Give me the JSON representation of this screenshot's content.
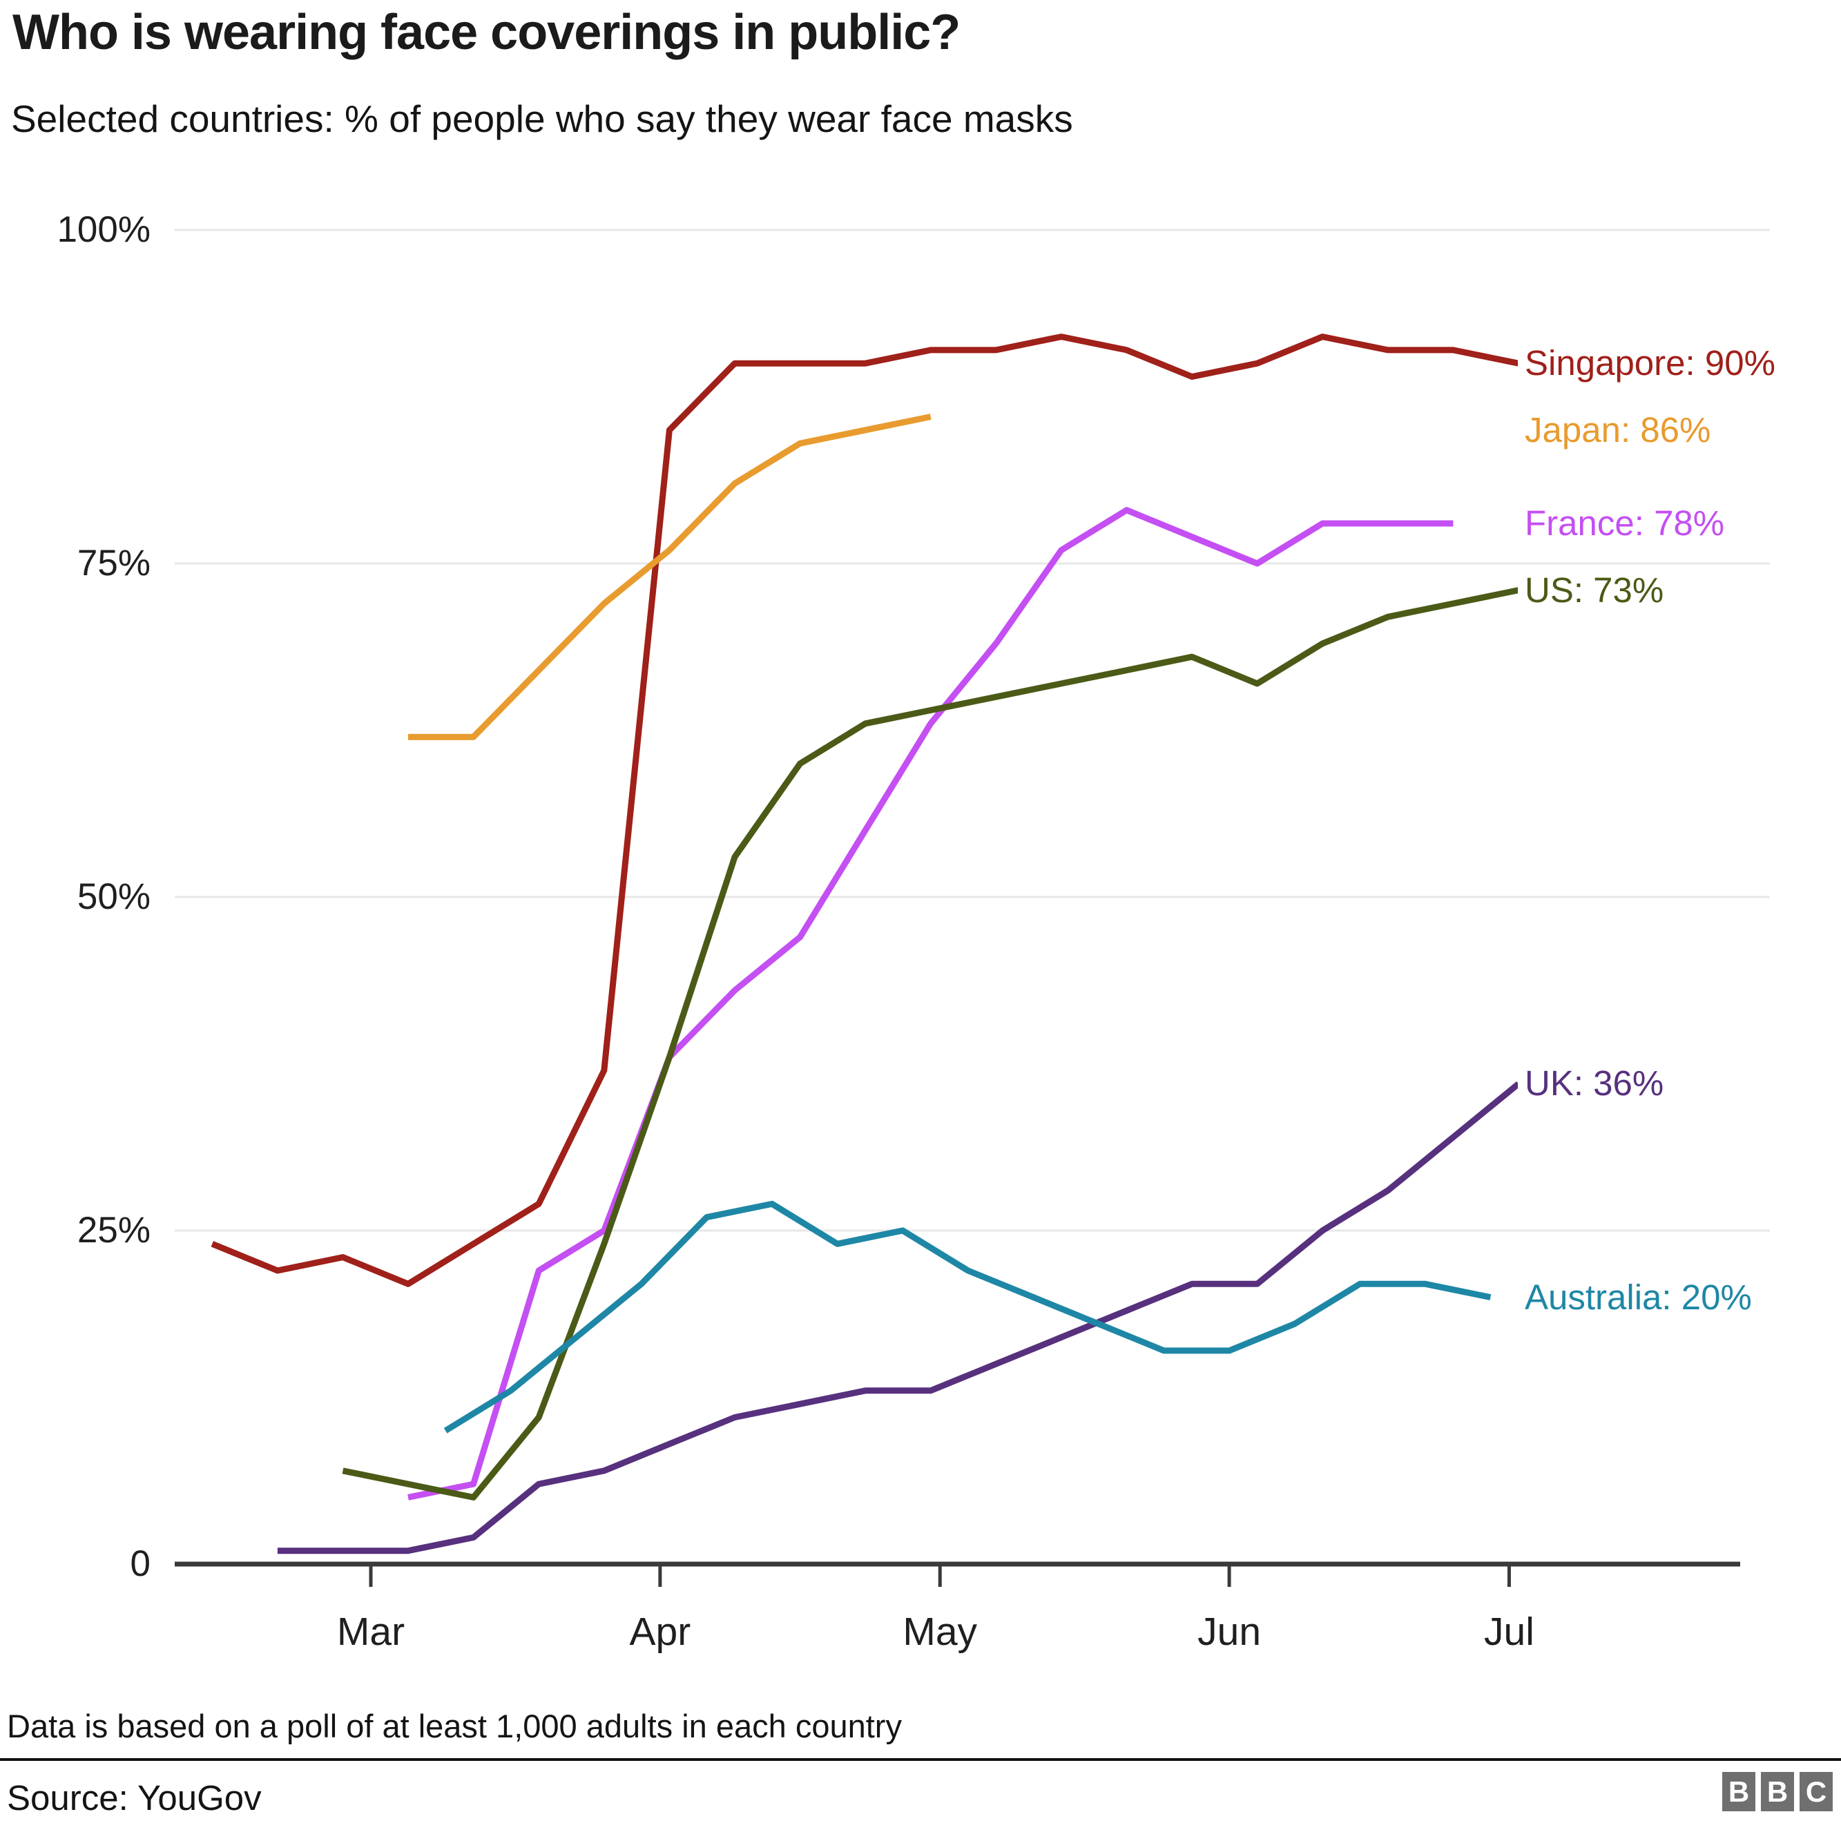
{
  "title": "Who is wearing face coverings in public?",
  "subtitle": "Selected countries: % of people who say they wear face masks",
  "footnote": "Data is based on a poll of at least 1,000 adults in each country",
  "source": "Source: YouGov",
  "logo": {
    "letters": [
      "B",
      "B",
      "C"
    ],
    "block_color": "#6f6f6f"
  },
  "chart_data": {
    "type": "line",
    "title": "Who is wearing face coverings in public?",
    "xlabel": "",
    "ylabel": "% of people who say they wear face masks",
    "ylim": [
      0,
      100
    ],
    "grid": true,
    "grid_color": "#e7e7e7",
    "axis_color": "#3a3a3a",
    "legend_position": "right of line ends, value labels",
    "y_ticks": [
      {
        "label": "100%",
        "v": 100
      },
      {
        "label": "75%",
        "v": 75
      },
      {
        "label": "50%",
        "v": 50
      },
      {
        "label": "25%",
        "v": 25
      },
      {
        "label": "0",
        "v": 0
      }
    ],
    "x_ticks": [
      "Mar",
      "Apr",
      "May",
      "Jun",
      "Jul"
    ],
    "series": [
      {
        "name": "Singapore",
        "color": "#a0201a",
        "label": "Singapore: 90%",
        "label_v": 90,
        "points": [
          [
            "Feb 13",
            24
          ],
          [
            "Feb 20",
            22
          ],
          [
            "Feb 27",
            23
          ],
          [
            "Mar 5",
            21
          ],
          [
            "Mar 12",
            24
          ],
          [
            "Mar 19",
            27
          ],
          [
            "Mar 26",
            37
          ],
          [
            "Apr 2",
            85
          ],
          [
            "Apr 9",
            90
          ],
          [
            "Apr 16",
            90
          ],
          [
            "Apr 23",
            90
          ],
          [
            "Apr 30",
            91
          ],
          [
            "May 7",
            91
          ],
          [
            "May 14",
            92
          ],
          [
            "May 21",
            91
          ],
          [
            "May 28",
            89
          ],
          [
            "Jun 4",
            90
          ],
          [
            "Jun 11",
            92
          ],
          [
            "Jun 18",
            91
          ],
          [
            "Jun 25",
            91
          ],
          [
            "Jul 2",
            90
          ]
        ]
      },
      {
        "name": "Japan",
        "color": "#e89b2e",
        "label": "Japan: 86%",
        "label_v": 85,
        "points": [
          [
            "Mar 5",
            62
          ],
          [
            "Mar 12",
            62
          ],
          [
            "Mar 19",
            67
          ],
          [
            "Mar 26",
            72
          ],
          [
            "Apr 2",
            76
          ],
          [
            "Apr 9",
            81
          ],
          [
            "Apr 16",
            84
          ],
          [
            "Apr 23",
            85
          ],
          [
            "Apr 30",
            86
          ]
        ]
      },
      {
        "name": "France",
        "color": "#c44ff2",
        "label": "France: 78%",
        "label_v": 78,
        "points": [
          [
            "Mar 5",
            5
          ],
          [
            "Mar 12",
            6
          ],
          [
            "Mar 19",
            22
          ],
          [
            "Mar 26",
            25
          ],
          [
            "Apr 2",
            38
          ],
          [
            "Apr 9",
            43
          ],
          [
            "Apr 16",
            47
          ],
          [
            "Apr 23",
            55
          ],
          [
            "Apr 30",
            63
          ],
          [
            "May 7",
            69
          ],
          [
            "May 14",
            76
          ],
          [
            "May 21",
            79
          ],
          [
            "May 28",
            77
          ],
          [
            "Jun 4",
            75
          ],
          [
            "Jun 11",
            78
          ],
          [
            "Jun 18",
            78
          ],
          [
            "Jun 25",
            78
          ]
        ]
      },
      {
        "name": "US",
        "color": "#4b5a16",
        "label": "US: 73%",
        "label_v": 73,
        "points": [
          [
            "Feb 27",
            7
          ],
          [
            "Mar 5",
            6
          ],
          [
            "Mar 12",
            5
          ],
          [
            "Mar 19",
            11
          ],
          [
            "Mar 26",
            24
          ],
          [
            "Apr 2",
            38
          ],
          [
            "Apr 9",
            53
          ],
          [
            "Apr 16",
            60
          ],
          [
            "Apr 23",
            63
          ],
          [
            "Apr 30",
            64
          ],
          [
            "May 7",
            65
          ],
          [
            "May 14",
            66
          ],
          [
            "May 21",
            67
          ],
          [
            "May 28",
            68
          ],
          [
            "Jun 4",
            66
          ],
          [
            "Jun 11",
            69
          ],
          [
            "Jun 18",
            71
          ],
          [
            "Jun 25",
            72
          ],
          [
            "Jul 2",
            73
          ]
        ]
      },
      {
        "name": "UK",
        "color": "#57307e",
        "label": "UK: 36%",
        "label_v": 36,
        "points": [
          [
            "Feb 20",
            1
          ],
          [
            "Feb 27",
            1
          ],
          [
            "Mar 5",
            1
          ],
          [
            "Mar 12",
            2
          ],
          [
            "Mar 19",
            6
          ],
          [
            "Mar 26",
            7
          ],
          [
            "Apr 2",
            9
          ],
          [
            "Apr 9",
            11
          ],
          [
            "Apr 16",
            12
          ],
          [
            "Apr 23",
            13
          ],
          [
            "Apr 30",
            13
          ],
          [
            "May 7",
            15
          ],
          [
            "May 14",
            17
          ],
          [
            "May 21",
            19
          ],
          [
            "May 28",
            21
          ],
          [
            "Jun 4",
            21
          ],
          [
            "Jun 11",
            25
          ],
          [
            "Jun 18",
            28
          ],
          [
            "Jun 25",
            32
          ],
          [
            "Jul 2",
            36
          ]
        ]
      },
      {
        "name": "Australia",
        "color": "#1e87a5",
        "label": "Australia: 20%",
        "label_v": 20,
        "points": [
          [
            "Mar 9",
            10
          ],
          [
            "Mar 16",
            13
          ],
          [
            "Mar 23",
            17
          ],
          [
            "Mar 30",
            21
          ],
          [
            "Apr 6",
            26
          ],
          [
            "Apr 13",
            27
          ],
          [
            "Apr 20",
            24
          ],
          [
            "Apr 27",
            25
          ],
          [
            "May 4",
            22
          ],
          [
            "May 11",
            20
          ],
          [
            "May 18",
            18
          ],
          [
            "May 25",
            16
          ],
          [
            "Jun 1",
            16
          ],
          [
            "Jun 8",
            18
          ],
          [
            "Jun 15",
            21
          ],
          [
            "Jun 22",
            21
          ],
          [
            "Jun 29",
            20
          ]
        ]
      }
    ]
  }
}
